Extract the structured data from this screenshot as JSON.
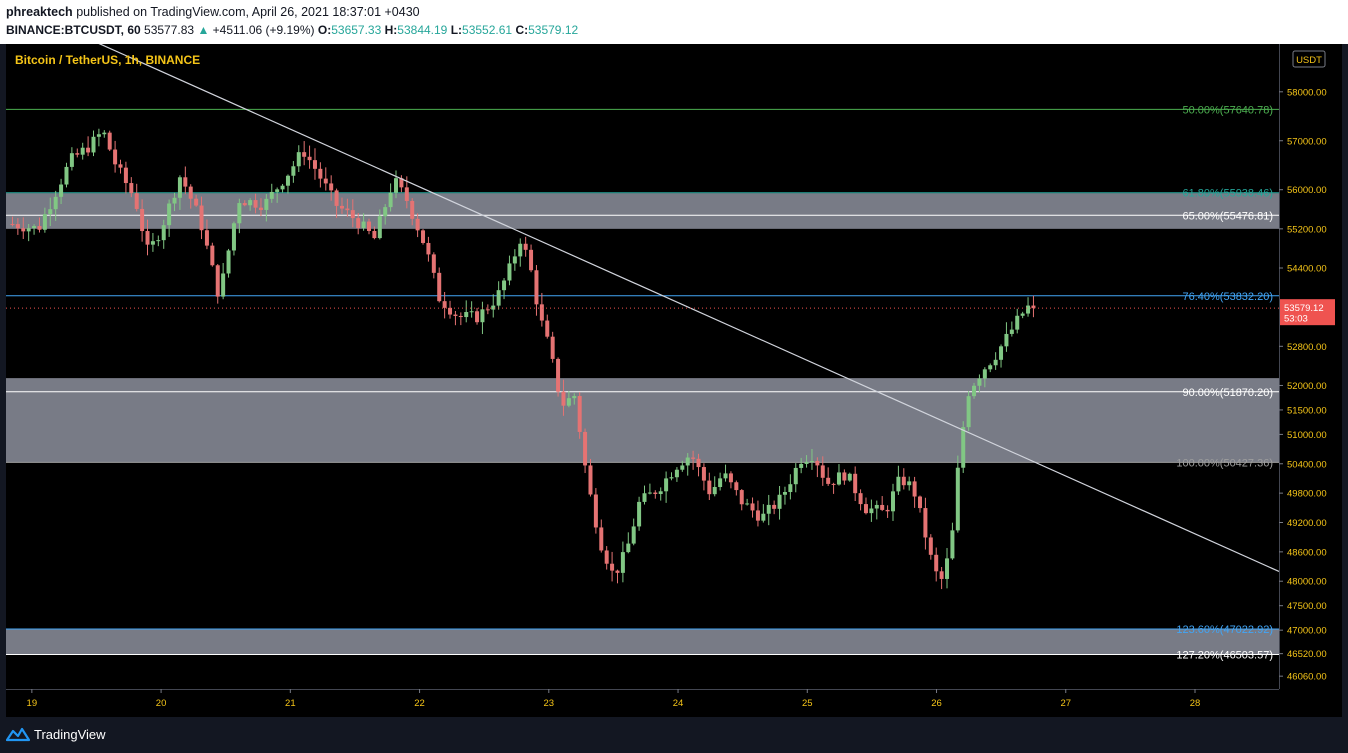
{
  "header": {
    "author": "phreaktech",
    "published_text": "published on TradingView.com, April 26, 2021 18:37:01 +0430",
    "symbol": "BINANCE:BTCUSDT, 60",
    "last": "53577.83",
    "change_icon": "triangle-up-icon",
    "change": "+4511.06 (+9.19%)",
    "open_label": "O:",
    "open": "53657.33",
    "high_label": "H:",
    "high": "53844.19",
    "low_label": "L:",
    "low": "53552.61",
    "close_label": "C:",
    "close": "53579.12"
  },
  "legend": "Bitcoin / TetherUS, 1h, BINANCE",
  "currency_badge": "USDT",
  "price_tag": {
    "price": "53579.12",
    "countdown": "53:03"
  },
  "footer": {
    "brand": "TradingView",
    "logo_icon": "tradingview-logo-icon"
  },
  "colors": {
    "up": "#26a69a",
    "candle_up": "#81c784",
    "candle_down": "#e57373",
    "fib_green": "#4caf50",
    "fib_teal": "#26a69a",
    "fib_blue": "#42a5f5",
    "fib_gray": "#9e9e9e",
    "zone": "#787b86",
    "axis_text": "#f5c518",
    "price_tag": "#ef5350"
  },
  "chart_data": {
    "type": "candlestick",
    "title": "Bitcoin / TetherUS, 1h, BINANCE",
    "x_tick_labels": [
      "19",
      "20",
      "21",
      "22",
      "23",
      "24",
      "25",
      "26",
      "27",
      "28"
    ],
    "x_tick_days": [
      19,
      20,
      21,
      22,
      23,
      24,
      25,
      26,
      27,
      28
    ],
    "y_tick_labels": [
      "58000.00",
      "57000.00",
      "56000.00",
      "55200.00",
      "54400.00",
      "52800.00",
      "52000.00",
      "51500.00",
      "51000.00",
      "50400.00",
      "49800.00",
      "49200.00",
      "48600.00",
      "48000.00",
      "47500.00",
      "47000.00",
      "46520.00",
      "46060.00"
    ],
    "ylim": [
      45900,
      58650
    ],
    "xlim_days": [
      18.8,
      28.65
    ],
    "current_price": 53579.12,
    "fib_levels": [
      {
        "label": "50.00%(57640.78)",
        "price": 57640.78,
        "color_key": "fib_green"
      },
      {
        "label": "61.80%(55938.46)",
        "price": 55938.46,
        "color_key": "fib_teal"
      },
      {
        "label": "65.00%(55476.81)",
        "price": 55476.81,
        "color_key": "white"
      },
      {
        "label": "76.40%(53832.20)",
        "price": 53832.2,
        "color_key": "fib_blue"
      },
      {
        "label": "90.00%(51870.20)",
        "price": 51870.2,
        "color_key": "white"
      },
      {
        "label": "100.00%(50427.36)",
        "price": 50427.36,
        "color_key": "fib_gray"
      },
      {
        "label": "123.60%(47022.92)",
        "price": 47022.92,
        "color_key": "fib_blue"
      },
      {
        "label": "127.20%(46503.57)",
        "price": 46503.57,
        "color_key": "white"
      }
    ],
    "zones": [
      {
        "from": 55200,
        "to": 55930
      },
      {
        "from": 50427.36,
        "to": 52150
      },
      {
        "from": 46503.57,
        "to": 47022.92
      }
    ],
    "trendline": {
      "start": {
        "day": 19.0,
        "price": 59600
      },
      "end": {
        "day": 28.65,
        "price": 48200
      }
    },
    "waypoints": [
      [
        18.85,
        55300
      ],
      [
        19.05,
        55200
      ],
      [
        19.3,
        56600
      ],
      [
        19.45,
        56900
      ],
      [
        19.55,
        57200
      ],
      [
        19.65,
        56500
      ],
      [
        19.8,
        55800
      ],
      [
        19.9,
        54700
      ],
      [
        20.0,
        55200
      ],
      [
        20.15,
        56300
      ],
      [
        20.3,
        55400
      ],
      [
        20.45,
        53800
      ],
      [
        20.6,
        55800
      ],
      [
        20.8,
        55700
      ],
      [
        21.0,
        56400
      ],
      [
        21.1,
        56800
      ],
      [
        21.2,
        56400
      ],
      [
        21.35,
        55700
      ],
      [
        21.5,
        55400
      ],
      [
        21.65,
        55000
      ],
      [
        21.8,
        56200
      ],
      [
        21.9,
        55800
      ],
      [
        22.05,
        54800
      ],
      [
        22.15,
        53800
      ],
      [
        22.3,
        53400
      ],
      [
        22.45,
        53400
      ],
      [
        22.6,
        53800
      ],
      [
        22.7,
        54400
      ],
      [
        22.78,
        55000
      ],
      [
        22.85,
        54500
      ],
      [
        22.93,
        53400
      ],
      [
        23.0,
        52800
      ],
      [
        23.1,
        51600
      ],
      [
        23.2,
        51800
      ],
      [
        23.3,
        50000
      ],
      [
        23.4,
        48800
      ],
      [
        23.5,
        48100
      ],
      [
        23.6,
        48600
      ],
      [
        23.7,
        49600
      ],
      [
        23.85,
        49900
      ],
      [
        24.0,
        50400
      ],
      [
        24.1,
        50600
      ],
      [
        24.25,
        49800
      ],
      [
        24.35,
        50200
      ],
      [
        24.5,
        49600
      ],
      [
        24.65,
        49300
      ],
      [
        24.8,
        49700
      ],
      [
        24.95,
        50500
      ],
      [
        25.05,
        50600
      ],
      [
        25.15,
        50000
      ],
      [
        25.3,
        50200
      ],
      [
        25.45,
        49500
      ],
      [
        25.6,
        49400
      ],
      [
        25.72,
        50100
      ],
      [
        25.82,
        49900
      ],
      [
        25.9,
        49100
      ],
      [
        25.98,
        48200
      ],
      [
        26.05,
        48000
      ],
      [
        26.12,
        48900
      ],
      [
        26.18,
        50700
      ],
      [
        26.25,
        51900
      ],
      [
        26.35,
        52300
      ],
      [
        26.45,
        52600
      ],
      [
        26.55,
        53000
      ],
      [
        26.62,
        53300
      ],
      [
        26.7,
        53600
      ],
      [
        26.75,
        53580
      ]
    ],
    "candle_count": 190
  }
}
